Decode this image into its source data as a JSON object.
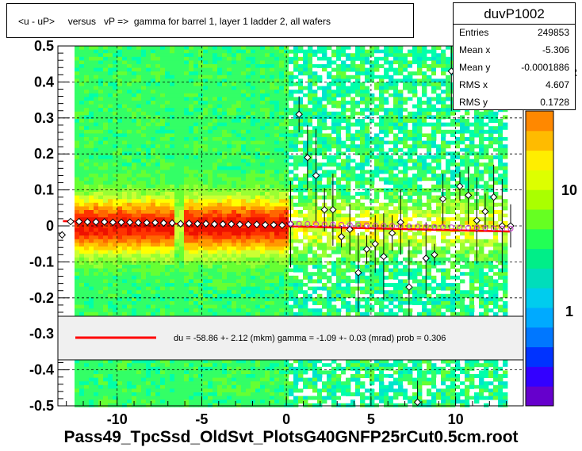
{
  "title": "<u - uP>     versus   vP =>  gamma for barrel 1, layer 1 ladder 2, all wafers",
  "stats": {
    "name": "duvP1002",
    "rows": [
      {
        "label": "Entries",
        "value": "249853"
      },
      {
        "label": "Mean x",
        "value": "-5.306"
      },
      {
        "label": "Mean y",
        "value": "-0.0001886"
      },
      {
        "label": "RMS x",
        "value": "4.607"
      },
      {
        "label": "RMS y",
        "value": "0.1728"
      }
    ]
  },
  "legend": {
    "text": "du =  -58.86 +-  2.12 (mkm) gamma =   -1.09 +-  0.03 (mrad) prob = 0.306",
    "line_color": "#ff0000"
  },
  "footer": "Pass49_TpcSsd_OldSvt_PlotsG40GNFP25rCut0.5cm.root",
  "colors": {
    "fit": "#ff0000",
    "marker": "#000000",
    "open_marker": "#cc33cc"
  },
  "chart_data": {
    "type": "heatmap",
    "xlim": [
      -13.5,
      14
    ],
    "ylim": [
      -0.5,
      0.5
    ],
    "x_ticks": [
      -10,
      -5,
      0,
      5,
      10
    ],
    "y_ticks": [
      -0.5,
      -0.4,
      -0.3,
      -0.2,
      -0.1,
      0,
      0.1,
      0.2,
      0.3,
      0.4,
      0.5
    ],
    "y_tick_labels": [
      "-0.5",
      "-0.4",
      "-0.3",
      "-0.2",
      "-0.1",
      "0",
      "0.1",
      "0.2",
      "0.3",
      "0.4",
      "0.5"
    ],
    "z_scale": "log",
    "z_tick_labels": [
      "1",
      "10",
      "10^2"
    ],
    "grid": true,
    "fit_line": {
      "x": [
        -13.2,
        13.2
      ],
      "y": [
        0.0132,
        -0.0156
      ]
    },
    "profile_points": {
      "x": [
        -13.25,
        -12.75,
        -12.25,
        -11.75,
        -11.25,
        -10.75,
        -10.25,
        -9.75,
        -9.25,
        -8.75,
        -8.25,
        -7.75,
        -7.25,
        -6.75,
        -6.25,
        -5.75,
        -5.25,
        -4.75,
        -4.25,
        -3.75,
        -3.25,
        -2.75,
        -2.25,
        -1.75,
        -1.25,
        -0.75,
        -0.25,
        0.25,
        0.75,
        1.25,
        1.75,
        2.25,
        2.75,
        3.25,
        3.75,
        4.25,
        4.75,
        5.25,
        5.75,
        6.25,
        6.75,
        7.25,
        7.75,
        8.25,
        8.75,
        9.25,
        9.75,
        10.25,
        10.75,
        11.25,
        11.75,
        12.25,
        12.75,
        13.25
      ],
      "y": [
        -0.025,
        0.012,
        0.012,
        0.011,
        0.011,
        0.011,
        0.01,
        0.01,
        0.01,
        0.009,
        0.009,
        0.009,
        0.008,
        0.008,
        0.006,
        0.007,
        0.006,
        0.006,
        0.005,
        0.005,
        0.005,
        0.004,
        0.004,
        0.004,
        0.003,
        0.003,
        0.002,
        0.005,
        0.31,
        0.19,
        0.14,
        0.045,
        0.045,
        -0.03,
        -0.01,
        -0.13,
        -0.065,
        -0.05,
        -0.085,
        -0.02,
        0.01,
        -0.17,
        -0.49,
        -0.09,
        -0.08,
        0.075,
        0.43,
        0.11,
        0.085,
        0.015,
        0.04,
        0.08,
        0.0,
        0.0
      ]
    }
  }
}
